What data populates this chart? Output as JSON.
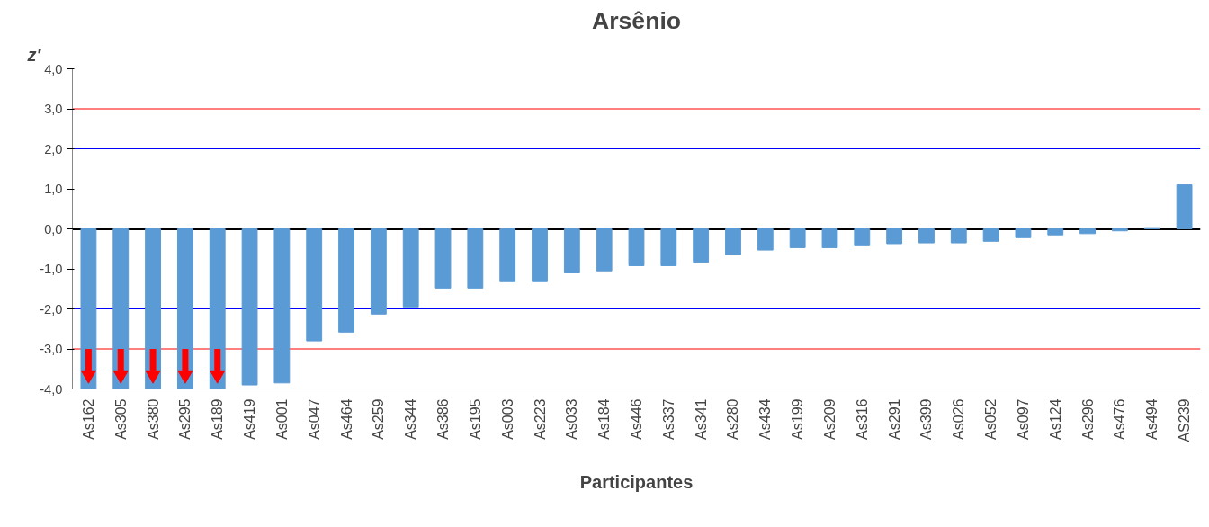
{
  "chart_data": {
    "type": "bar",
    "title": "Arsênio",
    "xlabel": "Participantes",
    "ylabel": "z′",
    "categories": [
      "As162",
      "As305",
      "As380",
      "As295",
      "As189",
      "As419",
      "As001",
      "As047",
      "As464",
      "As259",
      "As344",
      "As386",
      "As195",
      "As003",
      "As223",
      "As033",
      "As184",
      "As446",
      "As337",
      "As341",
      "As280",
      "As434",
      "As199",
      "As209",
      "As316",
      "As291",
      "As399",
      "As026",
      "As052",
      "As097",
      "As124",
      "As296",
      "As476",
      "As494",
      "AS239"
    ],
    "values": [
      -4.0,
      -4.0,
      -4.0,
      -4.0,
      -4.0,
      -3.9,
      -3.85,
      -2.8,
      -2.58,
      -2.13,
      -1.95,
      -1.48,
      -1.48,
      -1.32,
      -1.32,
      -1.1,
      -1.05,
      -0.92,
      -0.92,
      -0.83,
      -0.65,
      -0.53,
      -0.47,
      -0.47,
      -0.4,
      -0.37,
      -0.35,
      -0.35,
      -0.31,
      -0.22,
      -0.15,
      -0.12,
      -0.05,
      0.03,
      1.1
    ],
    "color": "#5b9bd5",
    "ylim": [
      -4.0,
      4.0
    ],
    "yticks": [
      {
        "value": -4,
        "label": "-4,0"
      },
      {
        "value": -3,
        "label": "-3,0"
      },
      {
        "value": -2,
        "label": "-2,0"
      },
      {
        "value": -1,
        "label": "-1,0"
      },
      {
        "value": 0,
        "label": "0,0"
      },
      {
        "value": 1,
        "label": "1,0"
      },
      {
        "value": 2,
        "label": "2,0"
      },
      {
        "value": 3,
        "label": "3,0"
      },
      {
        "value": 4,
        "label": "4,0"
      }
    ],
    "ref_lines": [
      {
        "axis": "y",
        "value": 3,
        "label": null,
        "color": "#ff0000"
      },
      {
        "axis": "y",
        "value": -3,
        "label": null,
        "color": "#ff0000"
      },
      {
        "axis": "y",
        "value": 2,
        "label": null,
        "color": "#0000ff"
      },
      {
        "axis": "y",
        "value": -2,
        "label": null,
        "color": "#0000ff"
      }
    ],
    "grid": false
  }
}
